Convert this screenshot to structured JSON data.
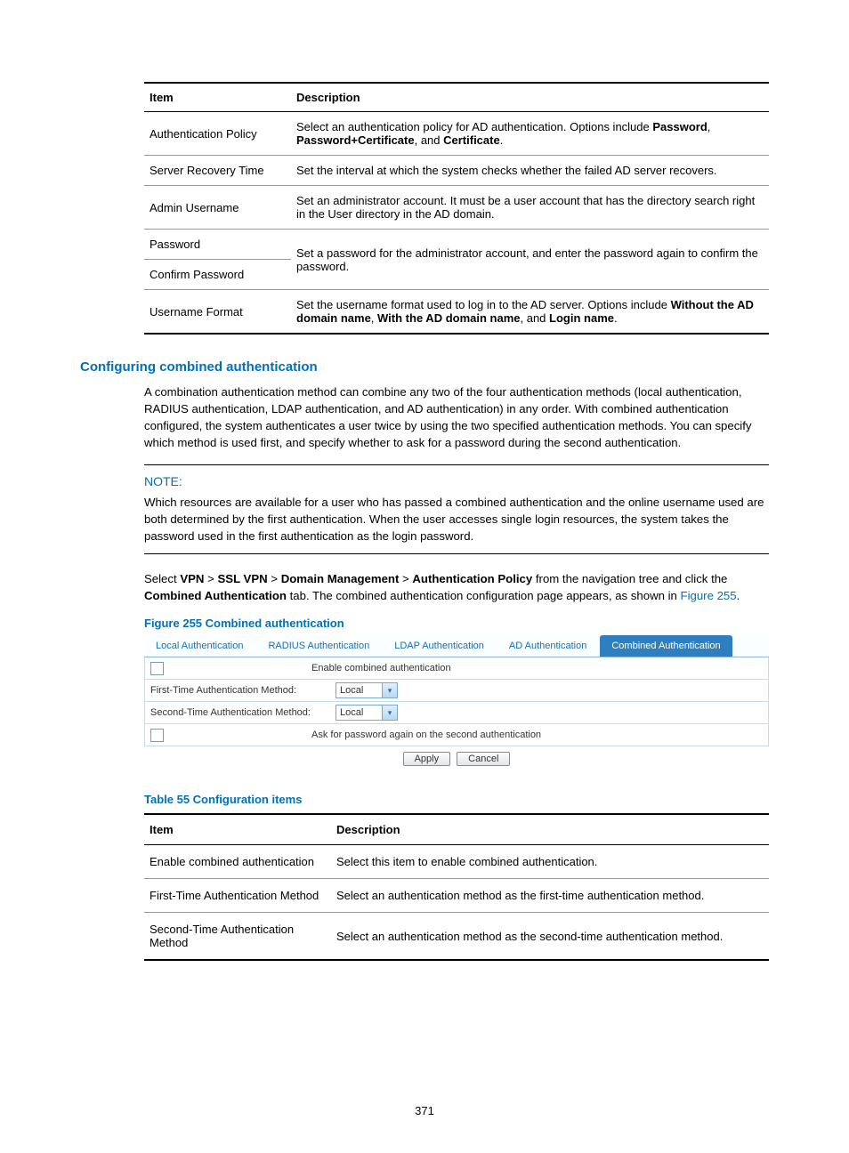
{
  "table1": {
    "head_item": "Item",
    "head_desc": "Description",
    "rows": [
      {
        "item": "Authentication Policy",
        "desc": "Select an authentication policy for AD authentication. Options include <b>Password</b>, <b>Password+Certificate</b>, and <b>Certificate</b>."
      },
      {
        "item": "Server Recovery Time",
        "desc": "Set the interval at which the system checks whether the failed AD server recovers."
      },
      {
        "item": "Admin Username",
        "desc": "Set an administrator account. It must be a user account that has the directory search right in the User directory in the AD domain."
      },
      {
        "item": "Password",
        "desc": "Set a password for the administrator account, and enter the password again to confirm the password.",
        "merge_with_next": true
      },
      {
        "item": "Confirm Password",
        "desc": ""
      },
      {
        "item": "Username Format",
        "desc": "Set the username format used to log in to the AD server. Options include <b>Without the AD domain name</b>, <b>With the AD domain name</b>, and <b>Login name</b>."
      }
    ]
  },
  "heading": "Configuring combined authentication",
  "para1": "A combination authentication method can combine any two of the four authentication methods (local authentication, RADIUS authentication, LDAP authentication, and AD authentication) in any order. With combined authentication configured, the system authenticates a user twice by using the two specified authentication methods. You can specify which method is used first, and specify whether to ask for a password during the second authentication.",
  "note": {
    "label": "NOTE:",
    "body": "Which resources are available for a user who has passed a combined authentication and the online username used are both determined by the first authentication. When the user accesses single login resources, the system takes the password used in the first authentication as the login password."
  },
  "para2_parts": {
    "pre": "Select ",
    "nav": "<b>VPN</b> > <b>SSL VPN</b> > <b>Domain Management</b> > <b>Authentication Policy</b>",
    "mid": " from the navigation tree and click the <b>Combined Authentication</b> tab. The combined authentication configuration page appears, as shown in ",
    "figref": "Figure 255",
    "post": "."
  },
  "figure": {
    "caption": "Figure 255 Combined authentication",
    "tabs": [
      "Local Authentication",
      "RADIUS Authentication",
      "LDAP Authentication",
      "AD Authentication",
      "Combined Authentication"
    ],
    "active_tab_index": 4,
    "row_enable": "Enable combined authentication",
    "row_first_label": "First-Time Authentication Method:",
    "row_second_label": "Second-Time Authentication Method:",
    "select_value": "Local",
    "row_ask": "Ask for password again on the second authentication",
    "btn_apply": "Apply",
    "btn_cancel": "Cancel",
    "colors": {
      "tab_text": "#1a6fb0",
      "tab_active_bg": "#2e7fc0",
      "tab_active_text": "#ffffff",
      "border": "#c8dceb"
    }
  },
  "table2": {
    "caption": "Table 55 Configuration items",
    "head_item": "Item",
    "head_desc": "Description",
    "rows": [
      {
        "item": "Enable combined authentication",
        "desc": "Select this item to enable combined authentication."
      },
      {
        "item": "First-Time Authentication Method",
        "desc": "Select an authentication method as the first-time authentication method."
      },
      {
        "item": "Second-Time Authentication Method",
        "desc": "Select an authentication method as the second-time authentication method."
      }
    ]
  },
  "page_number": "371"
}
